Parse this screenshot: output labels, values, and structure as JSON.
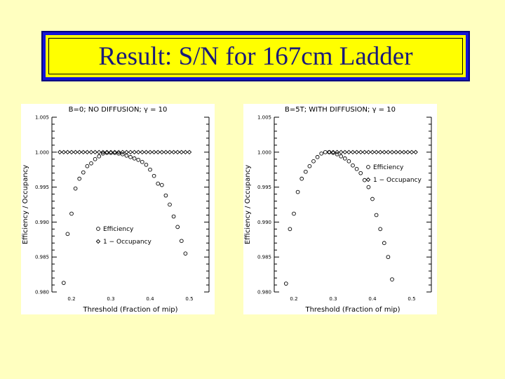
{
  "title": "Result: S/N for 167cm Ladder",
  "colors": {
    "background": "#ffffc0",
    "title_fill": "#ffff00",
    "title_border": "#1414d8",
    "title_text": "#1a1a7a",
    "ink": "#000000"
  },
  "chart_data": [
    {
      "type": "scatter",
      "title": "B=0; NO DIFFUSION; γ = 10",
      "xlabel": "Threshold (Fraction of mip)",
      "ylabel": "Efficiency / Occupancy",
      "xlim": [
        0.15,
        0.55
      ],
      "ylim": [
        0.98,
        1.005
      ],
      "xticks": [
        "0.2",
        "0.3",
        "0.4",
        "0.5"
      ],
      "yticks": [
        "0.980",
        "0.985",
        "0.990",
        "0.995",
        "1.000",
        "1.005"
      ],
      "legend_location": "lower-center",
      "series": [
        {
          "name": "Efficiency",
          "marker": "circle",
          "x": [
            0.18,
            0.19,
            0.2,
            0.21,
            0.22,
            0.23,
            0.24,
            0.25,
            0.26,
            0.27,
            0.28,
            0.29,
            0.3,
            0.31,
            0.32,
            0.33,
            0.34,
            0.35,
            0.36,
            0.37,
            0.38,
            0.39,
            0.4,
            0.41,
            0.42,
            0.43,
            0.44,
            0.45,
            0.46,
            0.47,
            0.48,
            0.49
          ],
          "y": [
            0.9813,
            0.9883,
            0.9912,
            0.9948,
            0.9962,
            0.9971,
            0.998,
            0.9984,
            0.999,
            0.9994,
            0.9998,
            0.9999,
            0.9999,
            0.9999,
            0.9998,
            0.9997,
            0.9995,
            0.9993,
            0.9991,
            0.9989,
            0.9986,
            0.9982,
            0.9975,
            0.9966,
            0.9955,
            0.9953,
            0.9938,
            0.9925,
            0.9908,
            0.9893,
            0.9873,
            0.9855
          ]
        },
        {
          "name": "1 − Occupancy",
          "marker": "diamond",
          "x": [
            0.17,
            0.18,
            0.19,
            0.2,
            0.21,
            0.22,
            0.23,
            0.24,
            0.25,
            0.26,
            0.27,
            0.28,
            0.29,
            0.3,
            0.31,
            0.32,
            0.33,
            0.34,
            0.35,
            0.36,
            0.37,
            0.38,
            0.39,
            0.4,
            0.41,
            0.42,
            0.43,
            0.44,
            0.45,
            0.46,
            0.47,
            0.48,
            0.49,
            0.5
          ],
          "y": [
            1.0,
            1.0,
            1.0,
            1.0,
            1.0,
            1.0,
            1.0,
            1.0,
            1.0,
            1.0,
            1.0,
            1.0,
            1.0,
            1.0,
            1.0,
            1.0,
            1.0,
            1.0,
            1.0,
            1.0,
            1.0,
            1.0,
            1.0,
            1.0,
            1.0,
            1.0,
            1.0,
            1.0,
            1.0,
            1.0,
            1.0,
            1.0,
            1.0,
            1.0
          ]
        }
      ]
    },
    {
      "type": "scatter",
      "title": "B=5T; WITH DIFFUSION; γ = 10",
      "xlabel": "Threshold (Fraction of mip)",
      "ylabel": "Efficiency / Occupancy",
      "xlim": [
        0.15,
        0.55
      ],
      "ylim": [
        0.98,
        1.005
      ],
      "xticks": [
        "0.2",
        "0.3",
        "0.4",
        "0.5"
      ],
      "yticks": [
        "0.980",
        "0.985",
        "0.990",
        "0.995",
        "1.000",
        "1.005"
      ],
      "legend_location": "center-right",
      "series": [
        {
          "name": "Efficiency",
          "marker": "circle",
          "x": [
            0.18,
            0.19,
            0.2,
            0.21,
            0.22,
            0.23,
            0.24,
            0.25,
            0.26,
            0.27,
            0.28,
            0.29,
            0.3,
            0.31,
            0.32,
            0.33,
            0.34,
            0.35,
            0.36,
            0.37,
            0.38,
            0.39,
            0.4,
            0.41,
            0.42,
            0.43,
            0.44,
            0.45
          ],
          "y": [
            0.9812,
            0.989,
            0.9912,
            0.9943,
            0.9962,
            0.9972,
            0.998,
            0.9987,
            0.9993,
            0.9998,
            1.0,
            1.0,
            0.9999,
            0.9997,
            0.9994,
            0.9991,
            0.9987,
            0.9981,
            0.9976,
            0.997,
            0.996,
            0.995,
            0.9933,
            0.991,
            0.989,
            0.987,
            0.985,
            0.9818
          ]
        },
        {
          "name": "1 − Occupancy",
          "marker": "diamond",
          "x": [
            0.29,
            0.3,
            0.31,
            0.32,
            0.33,
            0.34,
            0.35,
            0.36,
            0.37,
            0.38,
            0.39,
            0.4,
            0.41,
            0.42,
            0.43,
            0.44,
            0.45,
            0.46,
            0.47,
            0.48,
            0.49,
            0.5,
            0.51
          ],
          "y": [
            1.0,
            1.0,
            1.0,
            1.0,
            1.0,
            1.0,
            1.0,
            1.0,
            1.0,
            1.0,
            1.0,
            1.0,
            1.0,
            1.0,
            1.0,
            1.0,
            1.0,
            1.0,
            1.0,
            1.0,
            1.0,
            1.0,
            1.0
          ]
        }
      ]
    }
  ]
}
